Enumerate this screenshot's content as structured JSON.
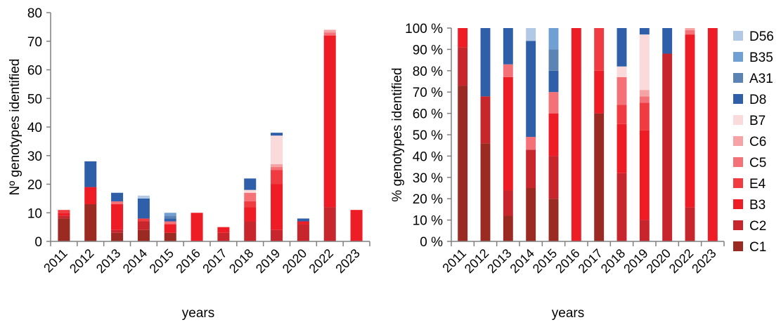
{
  "chart_data": [
    {
      "type": "bar",
      "stacked": true,
      "categories": [
        "2011",
        "2012",
        "2013",
        "2014",
        "2015",
        "2016",
        "2017",
        "2018",
        "2019",
        "2020",
        "2022",
        "2023"
      ],
      "xlabel": "years",
      "ylabel": "Nº genotypes identified",
      "ylim": [
        0,
        80
      ],
      "ytick_labels": [
        "0",
        "10",
        "20",
        "30",
        "40",
        "50",
        "60",
        "70",
        "80"
      ],
      "grid": false,
      "series": [
        {
          "name": "C1",
          "values": [
            8,
            13,
            3,
            4,
            3,
            0,
            0,
            0,
            0,
            0,
            0,
            0
          ]
        },
        {
          "name": "C2",
          "values": [
            1,
            0,
            1,
            3,
            0,
            0,
            3,
            7,
            4,
            6,
            12,
            0
          ]
        },
        {
          "name": "B3",
          "values": [
            1,
            6,
            9,
            0,
            3,
            10,
            2,
            5,
            16,
            1,
            60,
            11
          ]
        },
        {
          "name": "E4",
          "values": [
            1,
            0,
            0,
            1,
            0,
            0,
            0,
            2,
            5,
            0,
            0,
            0
          ]
        },
        {
          "name": "C5",
          "values": [
            0,
            0,
            1,
            0,
            1,
            0,
            0,
            3,
            1,
            0,
            1,
            0
          ]
        },
        {
          "name": "C6",
          "values": [
            0,
            0,
            0,
            0,
            0,
            0,
            0,
            0,
            1,
            0,
            1,
            0
          ]
        },
        {
          "name": "B7",
          "values": [
            0,
            0,
            0,
            0,
            0,
            0,
            0,
            1,
            10,
            0,
            0,
            0
          ]
        },
        {
          "name": "D8",
          "values": [
            0,
            9,
            3,
            7,
            1,
            0,
            0,
            4,
            1,
            1,
            0,
            0
          ]
        },
        {
          "name": "A31",
          "values": [
            0,
            0,
            0,
            0,
            1,
            0,
            0,
            0,
            0,
            0,
            0,
            0
          ]
        },
        {
          "name": "B35",
          "values": [
            0,
            0,
            0,
            0,
            1,
            0,
            0,
            0,
            0,
            0,
            0,
            0
          ]
        },
        {
          "name": "D56",
          "values": [
            0,
            0,
            0,
            1,
            0,
            0,
            0,
            0,
            0,
            0,
            0,
            0
          ]
        }
      ]
    },
    {
      "type": "bar",
      "stacked": true,
      "percent": true,
      "categories": [
        "2011",
        "2012",
        "2013",
        "2014",
        "2015",
        "2016",
        "2017",
        "2018",
        "2019",
        "2020",
        "2022",
        "2023"
      ],
      "xlabel": "years",
      "ylabel": "% genotypes identified",
      "ylim": [
        0,
        100
      ],
      "ytick_labels": [
        "0 %",
        "10 %",
        "20 %",
        "30 %",
        "40 %",
        "50 %",
        "60 %",
        "70 %",
        "80 %",
        "90 %",
        "100 %"
      ],
      "grid": false,
      "legend": {
        "position": "right",
        "order": [
          "D56",
          "B35",
          "A31",
          "D8",
          "B7",
          "C6",
          "C5",
          "E4",
          "B3",
          "C2",
          "C1"
        ]
      },
      "series": [
        {
          "name": "C1",
          "values": [
            73,
            46,
            12,
            25,
            20,
            0,
            60,
            0,
            0,
            0,
            0,
            0
          ]
        },
        {
          "name": "C2",
          "values": [
            18,
            22,
            12,
            18,
            20,
            0,
            0,
            32,
            10,
            88,
            16,
            0
          ]
        },
        {
          "name": "B3",
          "values": [
            9,
            0,
            53,
            0,
            20,
            100,
            20,
            23,
            42,
            0,
            81,
            100
          ]
        },
        {
          "name": "E4",
          "values": [
            0,
            0,
            0,
            0,
            0,
            0,
            20,
            9,
            13,
            0,
            0,
            0
          ]
        },
        {
          "name": "C5",
          "values": [
            0,
            0,
            6,
            6,
            10,
            0,
            0,
            13,
            3,
            0,
            2,
            0
          ]
        },
        {
          "name": "C6",
          "values": [
            0,
            0,
            0,
            0,
            0,
            0,
            0,
            0,
            3,
            0,
            1,
            0
          ]
        },
        {
          "name": "B7",
          "values": [
            0,
            0,
            0,
            0,
            0,
            0,
            0,
            5,
            26,
            0,
            0,
            0
          ]
        },
        {
          "name": "D8",
          "values": [
            0,
            32,
            17,
            45,
            10,
            0,
            0,
            18,
            3,
            12,
            0,
            0
          ]
        },
        {
          "name": "A31",
          "values": [
            0,
            0,
            0,
            0,
            10,
            0,
            0,
            0,
            0,
            0,
            0,
            0
          ]
        },
        {
          "name": "B35",
          "values": [
            0,
            0,
            0,
            0,
            10,
            0,
            0,
            0,
            0,
            0,
            0,
            0
          ]
        },
        {
          "name": "D56",
          "values": [
            0,
            0,
            0,
            6,
            0,
            0,
            0,
            0,
            0,
            0,
            0,
            0
          ]
        }
      ]
    }
  ],
  "colors": {
    "C1": "#9b2a22",
    "C2": "#c6262c",
    "B3": "#ee1c25",
    "E4": "#f03b41",
    "C5": "#f47277",
    "C6": "#f6a3a6",
    "B7": "#fadadb",
    "D8": "#2e5fa8",
    "A31": "#5b84b5",
    "B35": "#6f9fd3",
    "D56": "#b1c9e4"
  }
}
